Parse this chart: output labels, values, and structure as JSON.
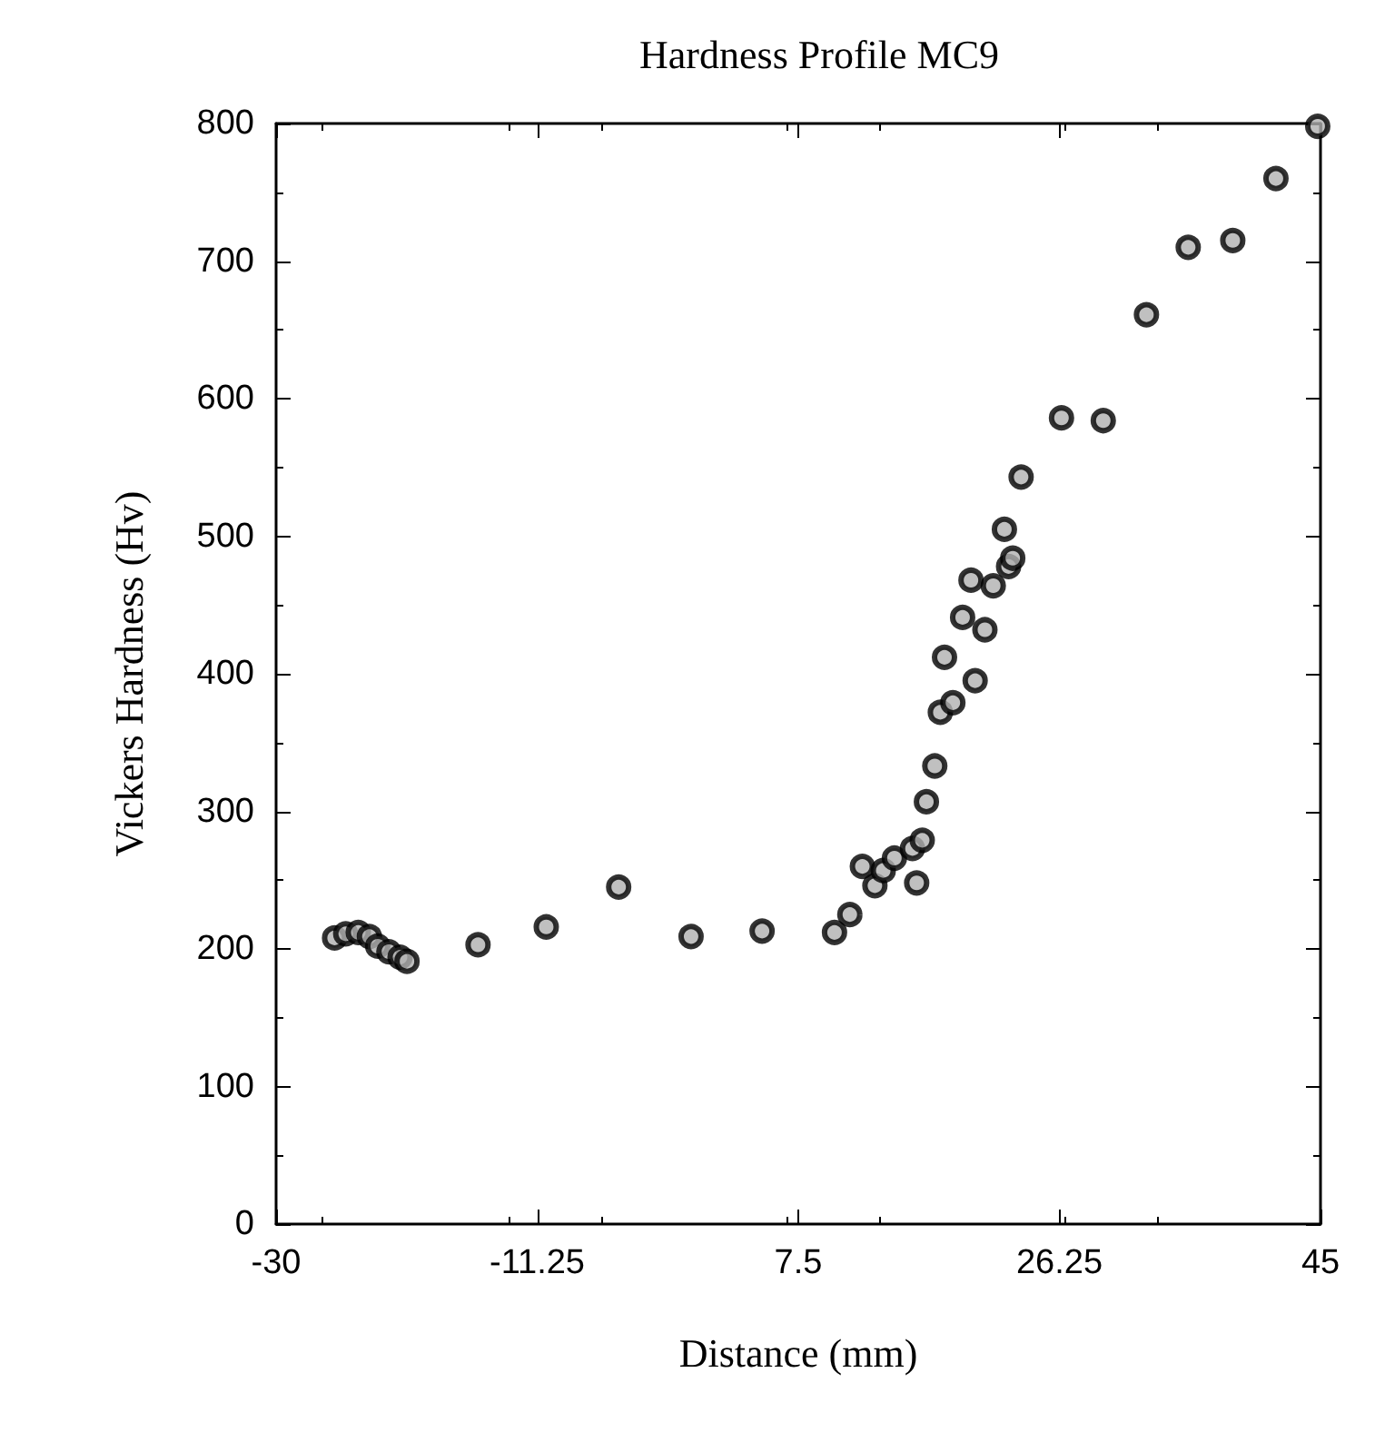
{
  "chart_data": {
    "type": "scatter",
    "title": "Hardness Profile MC9",
    "xlabel": "Distance (mm)",
    "ylabel": "Vickers Hardness (Hv)",
    "x": [
      -25.8,
      -25.0,
      -24.1,
      -23.3,
      -22.7,
      -21.9,
      -21.1,
      -20.6,
      -15.5,
      -10.6,
      -5.4,
      -0.2,
      4.9,
      10.1,
      11.2,
      12.1,
      13.0,
      13.6,
      14.4,
      15.7,
      16.0,
      16.4,
      16.7,
      17.3,
      17.7,
      18.6,
      20.2,
      18.0,
      19.3,
      20.9,
      19.9,
      21.5,
      22.6,
      22.9,
      22.3,
      23.5,
      26.4,
      29.4,
      32.5,
      35.5,
      38.7,
      41.8,
      44.8
    ],
    "series": [
      {
        "color": "#000000",
        "values": [
          208,
          211,
          212,
          209,
          202,
          198,
          194,
          191,
          203,
          216,
          245,
          209,
          213,
          212,
          225,
          260,
          246,
          257,
          266,
          273,
          248,
          279,
          307,
          333,
          372,
          379,
          395,
          412,
          441,
          432,
          468,
          464,
          478,
          484,
          505,
          543,
          586,
          584,
          661,
          710,
          715,
          760,
          798
        ]
      }
    ],
    "xlim": [
      -30,
      45
    ],
    "xticks": [
      -30,
      -11.25,
      7.5,
      26.25,
      45
    ],
    "ylim": [
      0,
      800
    ],
    "yticks": [
      0,
      100,
      200,
      300,
      400,
      500,
      600,
      700,
      800
    ],
    "grid": false,
    "marker": "circle"
  }
}
